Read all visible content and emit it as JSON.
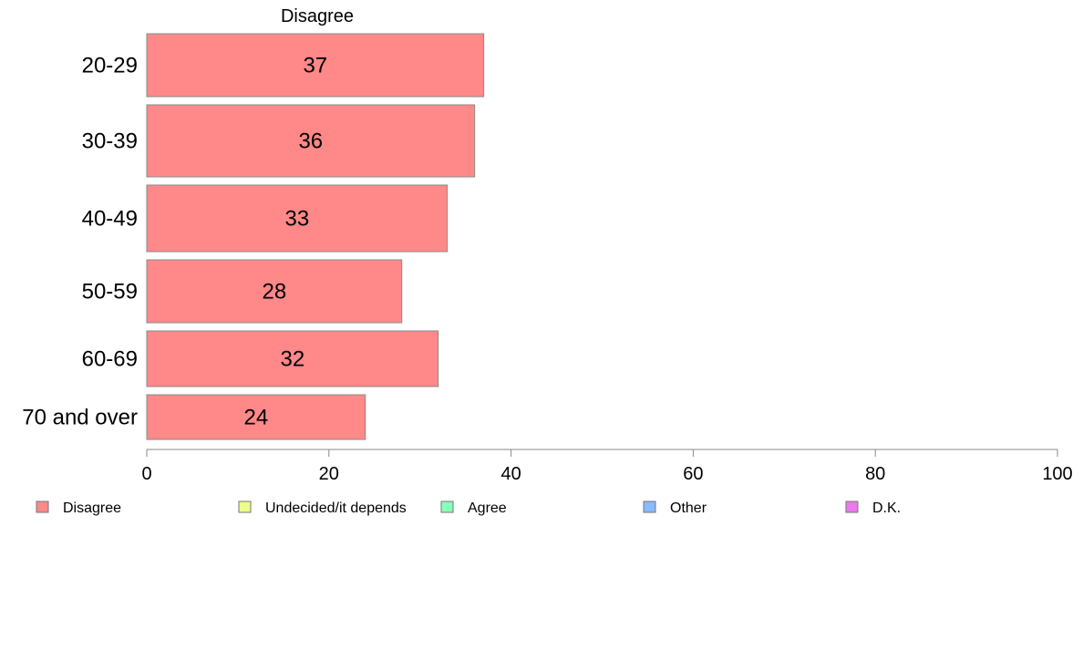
{
  "chart_data": {
    "type": "bar",
    "orientation": "horizontal",
    "header": "Disagree",
    "categories": [
      "20-29",
      "30-39",
      "40-49",
      "50-59",
      "60-69",
      "70 and over"
    ],
    "series": [
      {
        "name": "Disagree",
        "values": [
          37,
          36,
          33,
          28,
          32,
          24
        ],
        "color": "#ff8888"
      }
    ],
    "xlim": [
      0,
      100
    ],
    "xticks": [
      0,
      20,
      40,
      60,
      80,
      100
    ],
    "xtick_labels": [
      "0",
      "20",
      "40",
      "60",
      "80",
      "100"
    ],
    "legend": {
      "placement": "bottom",
      "entries": [
        {
          "label": "Disagree",
          "color": "#ff8888"
        },
        {
          "label": "Undecided/it depends",
          "color": "#eeff88"
        },
        {
          "label": "Agree",
          "color": "#88ffbb"
        },
        {
          "label": "Other",
          "color": "#88bbff"
        },
        {
          "label": "D.K.",
          "color": "#ee77ee"
        }
      ]
    }
  }
}
